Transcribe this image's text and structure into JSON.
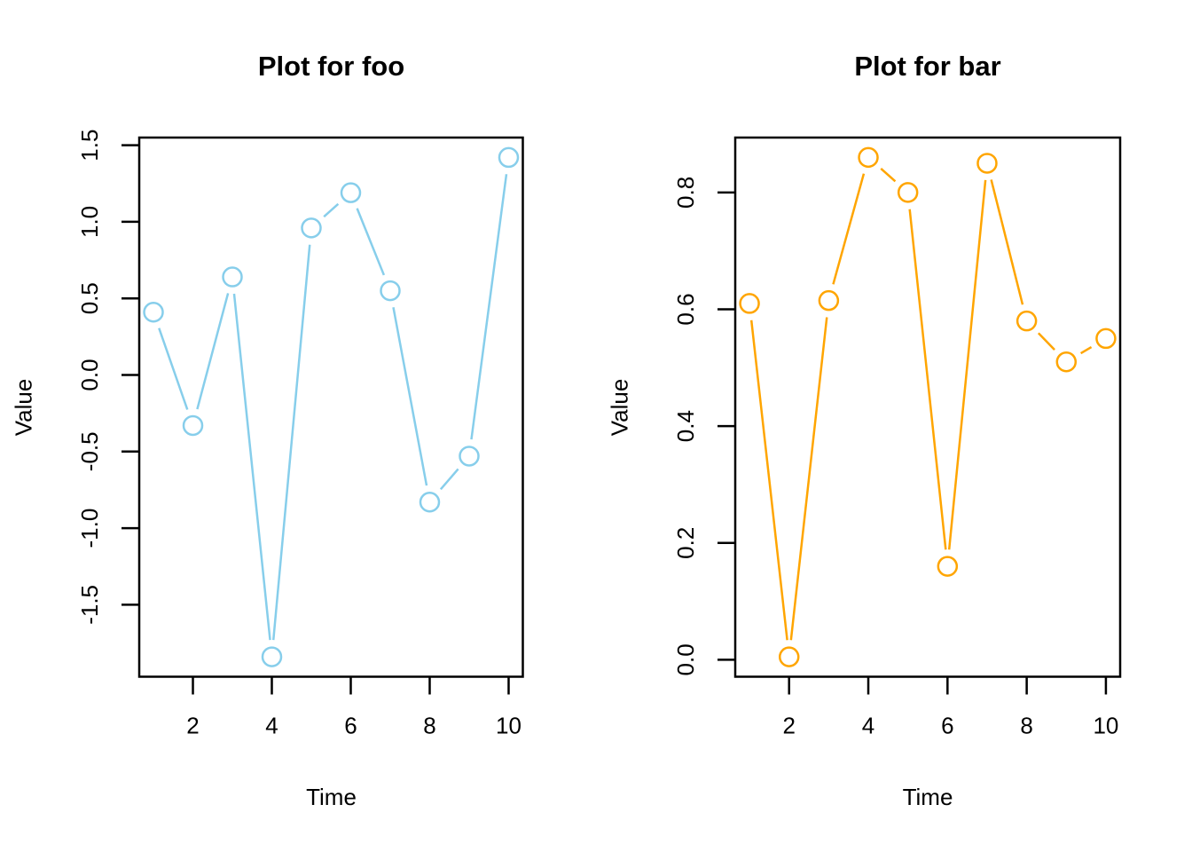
{
  "page": {
    "background": "#ffffff",
    "axis_color": "#000000"
  },
  "chart_data": [
    {
      "type": "line",
      "panel": "foo",
      "title": "Plot for foo",
      "xlabel": "Time",
      "ylabel": "Value",
      "marker": "open-circle",
      "line_color": "#87CEEB",
      "x": [
        1,
        2,
        3,
        4,
        5,
        6,
        7,
        8,
        9,
        10
      ],
      "values": [
        0.41,
        -0.33,
        0.64,
        -1.84,
        0.96,
        1.19,
        0.55,
        -0.83,
        -0.53,
        1.42
      ],
      "xlim": [
        0.64,
        10.36
      ],
      "ylim": [
        -1.97,
        1.55
      ],
      "xticks": [
        2,
        4,
        6,
        8,
        10
      ],
      "xtick_labels": [
        "2",
        "4",
        "6",
        "8",
        "10"
      ],
      "yticks": [
        -1.5,
        -1.0,
        -0.5,
        0.0,
        0.5,
        1.0,
        1.5
      ],
      "ytick_labels": [
        "-1.5",
        "-1.0",
        "-0.5",
        "0.0",
        "0.5",
        "1.0",
        "1.5"
      ],
      "grid": false,
      "legend": "none"
    },
    {
      "type": "line",
      "panel": "bar",
      "title": "Plot for bar",
      "xlabel": "Time",
      "ylabel": "Value",
      "marker": "open-circle",
      "line_color": "#FFA500",
      "x": [
        1,
        2,
        3,
        4,
        5,
        6,
        7,
        8,
        9,
        10
      ],
      "values": [
        0.61,
        0.005,
        0.615,
        0.86,
        0.8,
        0.16,
        0.85,
        0.58,
        0.51,
        0.55
      ],
      "xlim": [
        0.64,
        10.36
      ],
      "ylim": [
        -0.029,
        0.894
      ],
      "xticks": [
        2,
        4,
        6,
        8,
        10
      ],
      "xtick_labels": [
        "2",
        "4",
        "6",
        "8",
        "10"
      ],
      "yticks": [
        0.0,
        0.2,
        0.4,
        0.6,
        0.8
      ],
      "ytick_labels": [
        "0.0",
        "0.2",
        "0.4",
        "0.6",
        "0.8"
      ],
      "grid": false,
      "legend": "none"
    }
  ]
}
